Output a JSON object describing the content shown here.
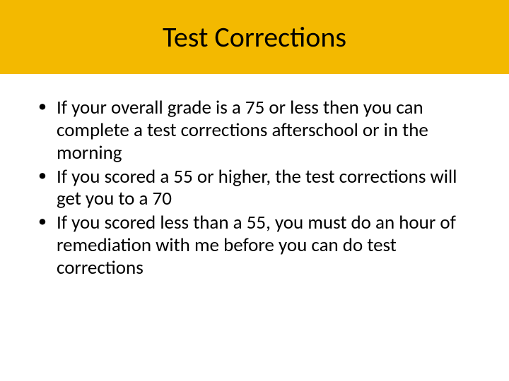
{
  "header": {
    "title": "Test Corrections",
    "background_color": "#f3b900",
    "title_color": "#000000",
    "title_fontsize": 40
  },
  "body": {
    "background_color": "#ffffff",
    "text_color": "#000000",
    "bullet_fontsize": 27,
    "bullets": [
      "If your overall grade is a 75 or less then you can complete a test corrections afterschool or in the morning",
      "If you scored a 55 or higher, the test corrections will get you to a 70",
      "If you scored less than a 55, you must do an hour of remediation with me before you can do test corrections"
    ]
  }
}
